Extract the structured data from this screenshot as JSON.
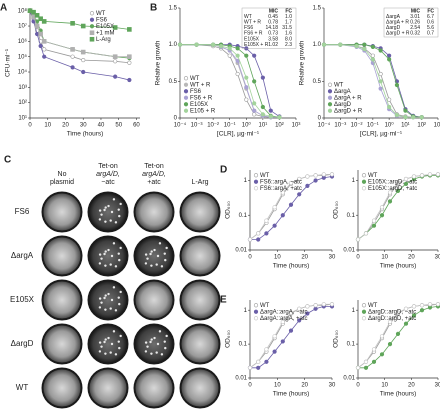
{
  "chart_data": [
    {
      "type": "line",
      "panel": "A",
      "ylabel": "CFU·ml⁻¹",
      "xlabel": "Time (hours)",
      "yscale": "log",
      "legend": "upper right",
      "x": [
        0,
        2,
        4,
        6,
        8,
        24,
        30,
        48,
        56
      ],
      "xlim": [
        0,
        62
      ],
      "xticks": [
        0,
        10,
        20,
        30,
        40,
        50,
        60
      ],
      "ylim": [
        10,
        150000000
      ],
      "yticks": [
        {
          "value": 10,
          "label": "10¹"
        },
        {
          "value": 100,
          "label": "10²"
        },
        {
          "value": 1000,
          "label": "10³"
        },
        {
          "value": 10000,
          "label": "10⁴"
        },
        {
          "value": 100000,
          "label": "10⁵"
        },
        {
          "value": 1000000,
          "label": "10⁶"
        },
        {
          "value": 10000000,
          "label": "10⁷"
        },
        {
          "value": 100000000,
          "label": "10⁸"
        }
      ],
      "series": [
        {
          "name": "WT",
          "color": "#9a9a9a",
          "marker": "circle",
          "filled": false,
          "values": [
            100000000,
            30000000,
            5000000,
            1000000,
            300000,
            100000,
            60000,
            50000,
            40000
          ]
        },
        {
          "name": "FS6",
          "color": "#6a5fa8",
          "marker": "circle",
          "filled": true,
          "values": [
            100000000,
            20000000,
            3000000,
            500000,
            100000,
            20000,
            10000,
            5000,
            3000
          ]
        },
        {
          "name": "E105X",
          "color": "#5fa55a",
          "marker": "circle",
          "filled": true,
          "values": [
            100000000,
            50000000,
            20000000,
            5000000,
            1000000,
            300000,
            200000,
            100000,
            80000
          ]
        },
        {
          "name": "+1 mM",
          "color": "#b0b0b0",
          "marker": "square",
          "filled": true,
          "values": [
            100000000,
            40000000,
            10000000,
            3000000,
            1000000,
            300000,
            200000,
            100000,
            100000
          ]
        },
        {
          "name": "L-Arg",
          "color": "#5fa55a",
          "marker": "square",
          "filled": true,
          "values": [
            100000000,
            80000000,
            50000000,
            30000000,
            20000000,
            15000000,
            10000000,
            8000000,
            6000000
          ]
        }
      ]
    },
    {
      "type": "line",
      "panel": "B",
      "ylabel": "Relative growth",
      "xlabel": "[CLR], µg·ml⁻¹",
      "xscale": "log",
      "legend": "lower left",
      "x": [
        0.0001,
        0.001,
        0.01,
        0.03,
        0.1,
        0.3,
        1,
        3,
        10,
        30,
        100
      ],
      "xlim": [
        0.0001,
        1000
      ],
      "xticks": [
        {
          "value": 0.0001,
          "label": "10⁻⁴"
        },
        {
          "value": 0.001,
          "label": "10⁻³"
        },
        {
          "value": 0.01,
          "label": "10⁻²"
        },
        {
          "value": 0.1,
          "label": "10⁻¹"
        },
        {
          "value": 1,
          "label": "10⁰"
        },
        {
          "value": 10,
          "label": "10¹"
        },
        {
          "value": 100,
          "label": "10²"
        },
        {
          "value": 1000,
          "label": "10³"
        }
      ],
      "ylim": [
        0,
        1.5
      ],
      "yticks": [
        0,
        0.5,
        {
          "value": 1,
          "label": "1.0"
        },
        1.5
      ],
      "table": {
        "header": [
          "MIC",
          "FC"
        ],
        "rows": [
          [
            "WT",
            "0.45",
            "1.0"
          ],
          [
            "WT + R",
            "0.78",
            "1.7"
          ],
          [
            "FS6",
            "14.18",
            "31.5"
          ],
          [
            "FS6 + R",
            "0.73",
            "1.6"
          ],
          [
            "E105X",
            "3.58",
            "8.0"
          ],
          [
            "E105X + R",
            "1.02",
            "2.3"
          ]
        ]
      },
      "series": [
        {
          "name": "WT",
          "color": "#9a9a9a",
          "marker": "circle",
          "filled": false,
          "values": [
            1,
            1,
            0.98,
            0.95,
            0.85,
            0.6,
            0.25,
            0.05,
            0.02,
            0.01,
            0.01
          ]
        },
        {
          "name": "WT + R",
          "color": "#b8b8b8",
          "marker": "circle",
          "filled": true,
          "values": [
            1,
            1,
            1,
            0.97,
            0.92,
            0.75,
            0.4,
            0.1,
            0.03,
            0.01,
            0.01
          ]
        },
        {
          "name": "FS6",
          "color": "#6a5fa8",
          "marker": "circle",
          "filled": true,
          "values": [
            1,
            1,
            1,
            1,
            1,
            0.98,
            0.95,
            0.85,
            0.55,
            0.1,
            0.02
          ]
        },
        {
          "name": "FS6 + R",
          "color": "#a9a2d4",
          "marker": "circle",
          "filled": true,
          "values": [
            1,
            1,
            1,
            0.97,
            0.92,
            0.78,
            0.42,
            0.1,
            0.03,
            0.01,
            0.01
          ]
        },
        {
          "name": "E105X",
          "color": "#5fa55a",
          "marker": "circle",
          "filled": true,
          "values": [
            1,
            1,
            1,
            1,
            0.98,
            0.95,
            0.85,
            0.5,
            0.15,
            0.03,
            0.01
          ]
        },
        {
          "name": "E105 + R",
          "color": "#a3d39c",
          "marker": "circle",
          "filled": true,
          "values": [
            1,
            1,
            1,
            0.98,
            0.95,
            0.85,
            0.55,
            0.2,
            0.05,
            0.02,
            0.01
          ]
        }
      ]
    },
    {
      "type": "line",
      "ylabel": "Relative growth",
      "xlabel": "[CLR], µg·ml⁻¹",
      "xscale": "log",
      "legend": "lower left",
      "x": [
        0.0001,
        0.001,
        0.01,
        0.03,
        0.1,
        0.3,
        1,
        3,
        10,
        30,
        100
      ],
      "xlim": [
        0.0001,
        1000
      ],
      "xticks": [
        {
          "value": 0.0001,
          "label": "10⁻⁴"
        },
        {
          "value": 0.001,
          "label": "10⁻³"
        },
        {
          "value": 0.01,
          "label": "10⁻²"
        },
        {
          "value": 0.1,
          "label": "10⁻¹"
        },
        {
          "value": 1,
          "label": "10⁰"
        },
        {
          "value": 10,
          "label": "10¹"
        },
        {
          "value": 100,
          "label": "10²"
        },
        {
          "value": 1000,
          "label": "10³"
        }
      ],
      "ylim": [
        0,
        1.5
      ],
      "yticks": [
        0,
        0.5,
        {
          "value": 1,
          "label": "1.0"
        },
        1.5
      ],
      "table": {
        "header": [
          "MIC",
          "FC"
        ],
        "rows": [
          [
            "ΔargA",
            "3.01",
            "6.7"
          ],
          [
            "ΔargA + R",
            "0.26",
            "0.6"
          ],
          [
            "ΔargD",
            "2.54",
            "5.6"
          ],
          [
            "ΔargD + R",
            "0.32",
            "0.7"
          ]
        ]
      },
      "series": [
        {
          "name": "WT",
          "color": "#9a9a9a",
          "marker": "circle",
          "filled": false,
          "values": [
            1,
            1,
            0.98,
            0.95,
            0.85,
            0.6,
            0.25,
            0.05,
            0.02,
            0.01,
            0.01
          ]
        },
        {
          "name": "ΔargA",
          "color": "#6a5fa8",
          "marker": "circle",
          "filled": true,
          "values": [
            1,
            1,
            1,
            1,
            0.98,
            0.95,
            0.85,
            0.5,
            0.12,
            0.03,
            0.01
          ]
        },
        {
          "name": "ΔargA + R",
          "color": "#a9a2d4",
          "marker": "circle",
          "filled": true,
          "values": [
            1,
            1,
            0.97,
            0.92,
            0.75,
            0.4,
            0.12,
            0.03,
            0.01,
            0.01,
            0.01
          ]
        },
        {
          "name": "ΔargD",
          "color": "#5fa55a",
          "marker": "circle",
          "filled": true,
          "values": [
            1,
            1,
            1,
            1,
            0.97,
            0.92,
            0.8,
            0.45,
            0.1,
            0.02,
            0.01
          ]
        },
        {
          "name": "ΔargD + R",
          "color": "#a3d39c",
          "marker": "circle",
          "filled": true,
          "values": [
            1,
            1,
            0.98,
            0.94,
            0.8,
            0.5,
            0.15,
            0.04,
            0.01,
            0.01,
            0.01
          ]
        }
      ]
    },
    {
      "type": "line",
      "panel": "D",
      "ylabel": "OD₆₀₀",
      "xlabel": "Time (hours)",
      "yscale": "log",
      "legend": "upper left",
      "x": [
        0,
        3,
        6,
        9,
        12,
        15,
        18,
        21,
        24,
        27,
        30
      ],
      "xlim": [
        0,
        30
      ],
      "xticks": [
        0,
        10,
        20,
        30
      ],
      "ylim": [
        0.01,
        2
      ],
      "yticks": [
        0.01,
        0.1,
        1
      ],
      "series": [
        {
          "name": "WT",
          "color": "#9a9a9a",
          "marker": "circle",
          "filled": false,
          "values": [
            0.02,
            0.03,
            0.06,
            0.15,
            0.4,
            0.8,
            1.1,
            1.3,
            1.4,
            1.4,
            1.5
          ]
        },
        {
          "name": "FS6::argA, −atc",
          "color": "#6a5fa8",
          "marker": "circle",
          "filled": true,
          "values": [
            0.02,
            0.02,
            0.03,
            0.05,
            0.1,
            0.2,
            0.4,
            0.7,
            1,
            1.2,
            1.3
          ]
        },
        {
          "name": "FS6::argA, +atc",
          "color": "#c4c4c4",
          "marker": "circle",
          "filled": false,
          "values": [
            0.02,
            0.03,
            0.07,
            0.17,
            0.45,
            0.85,
            1.1,
            1.3,
            1.4,
            1.5,
            1.5
          ]
        }
      ]
    },
    {
      "type": "line",
      "ylabel": "OD₆₀₀",
      "xlabel": "Time (hours)",
      "yscale": "log",
      "legend": "upper left",
      "x": [
        0,
        3,
        6,
        9,
        12,
        15,
        18,
        21,
        24,
        27,
        30
      ],
      "xlim": [
        0,
        30
      ],
      "xticks": [
        0,
        10,
        20,
        30
      ],
      "ylim": [
        0.01,
        2
      ],
      "yticks": [
        0.01,
        0.1,
        1
      ],
      "series": [
        {
          "name": "WT",
          "color": "#9a9a9a",
          "marker": "circle",
          "filled": false,
          "values": [
            0.02,
            0.03,
            0.06,
            0.15,
            0.4,
            0.8,
            1.1,
            1.3,
            1.4,
            1.4,
            1.5
          ]
        },
        {
          "name": "E105X::argD, −atc",
          "color": "#5fa55a",
          "marker": "circle",
          "filled": true,
          "values": [
            0.02,
            0.03,
            0.05,
            0.1,
            0.25,
            0.5,
            0.8,
            1.1,
            1.3,
            1.4,
            1.4
          ]
        },
        {
          "name": "E105X::argD, +atc",
          "color": "#c4c4c4",
          "marker": "circle",
          "filled": false,
          "values": [
            0.02,
            0.03,
            0.07,
            0.17,
            0.45,
            0.85,
            1.1,
            1.3,
            1.4,
            1.5,
            1.5
          ]
        }
      ]
    },
    {
      "type": "line",
      "panel": "E",
      "ylabel": "OD₆₀₀",
      "xlabel": "Time (hours)",
      "yscale": "log",
      "legend": "upper left",
      "x": [
        0,
        3,
        6,
        9,
        12,
        15,
        18,
        21,
        24,
        27,
        30
      ],
      "xlim": [
        0,
        30
      ],
      "xticks": [
        0,
        10,
        20,
        30
      ],
      "ylim": [
        0.01,
        2
      ],
      "yticks": [
        0.01,
        0.1,
        1
      ],
      "series": [
        {
          "name": "WT",
          "color": "#9a9a9a",
          "marker": "circle",
          "filled": false,
          "values": [
            0.02,
            0.03,
            0.06,
            0.15,
            0.4,
            0.8,
            1.1,
            1.3,
            1.4,
            1.4,
            1.5
          ]
        },
        {
          "name": "ΔargA::argA, −atc",
          "color": "#6a5fa8",
          "marker": "circle",
          "filled": true,
          "values": [
            0.02,
            0.02,
            0.03,
            0.06,
            0.12,
            0.25,
            0.5,
            0.8,
            1.1,
            1.3,
            1.3
          ]
        },
        {
          "name": "ΔargA::argA, +atc",
          "color": "#c4c4c4",
          "marker": "circle",
          "filled": false,
          "values": [
            0.02,
            0.03,
            0.07,
            0.17,
            0.45,
            0.85,
            1.1,
            1.3,
            1.4,
            1.5,
            1.5
          ]
        }
      ]
    },
    {
      "type": "line",
      "ylabel": "OD₆₀₀",
      "xlabel": "Time (hours)",
      "yscale": "log",
      "legend": "upper left",
      "x": [
        0,
        3,
        6,
        9,
        12,
        15,
        18,
        21,
        24,
        27,
        30
      ],
      "xlim": [
        0,
        30
      ],
      "xticks": [
        0,
        10,
        20,
        30
      ],
      "ylim": [
        0.01,
        2
      ],
      "yticks": [
        0.01,
        0.1,
        1
      ],
      "series": [
        {
          "name": "WT",
          "color": "#9a9a9a",
          "marker": "circle",
          "filled": false,
          "values": [
            0.02,
            0.03,
            0.06,
            0.15,
            0.4,
            0.8,
            1.1,
            1.3,
            1.4,
            1.4,
            1.5
          ]
        },
        {
          "name": "ΔargD::argD, −atc",
          "color": "#5fa55a",
          "marker": "circle",
          "filled": true,
          "values": [
            0.02,
            0.02,
            0.03,
            0.05,
            0.1,
            0.2,
            0.4,
            0.7,
            1,
            1.2,
            1.3
          ]
        },
        {
          "name": "ΔargD::argD, +atc",
          "color": "#c4c4c4",
          "marker": "circle",
          "filled": false,
          "values": [
            0.02,
            0.03,
            0.07,
            0.17,
            0.45,
            0.85,
            1.1,
            1.3,
            1.4,
            1.5,
            1.5
          ]
        }
      ]
    }
  ],
  "photo_panel": {
    "panel": "C",
    "columns": [
      [
        "No",
        "plasmid"
      ],
      [
        "Tet-on",
        "argA/D,",
        "−atc"
      ],
      [
        "Tet-on",
        "argA/D,",
        "+atc"
      ],
      [
        "L-Arg"
      ]
    ],
    "rows": [
      "FS6",
      "ΔargA",
      "E105X",
      "ΔargD",
      "WT"
    ]
  }
}
